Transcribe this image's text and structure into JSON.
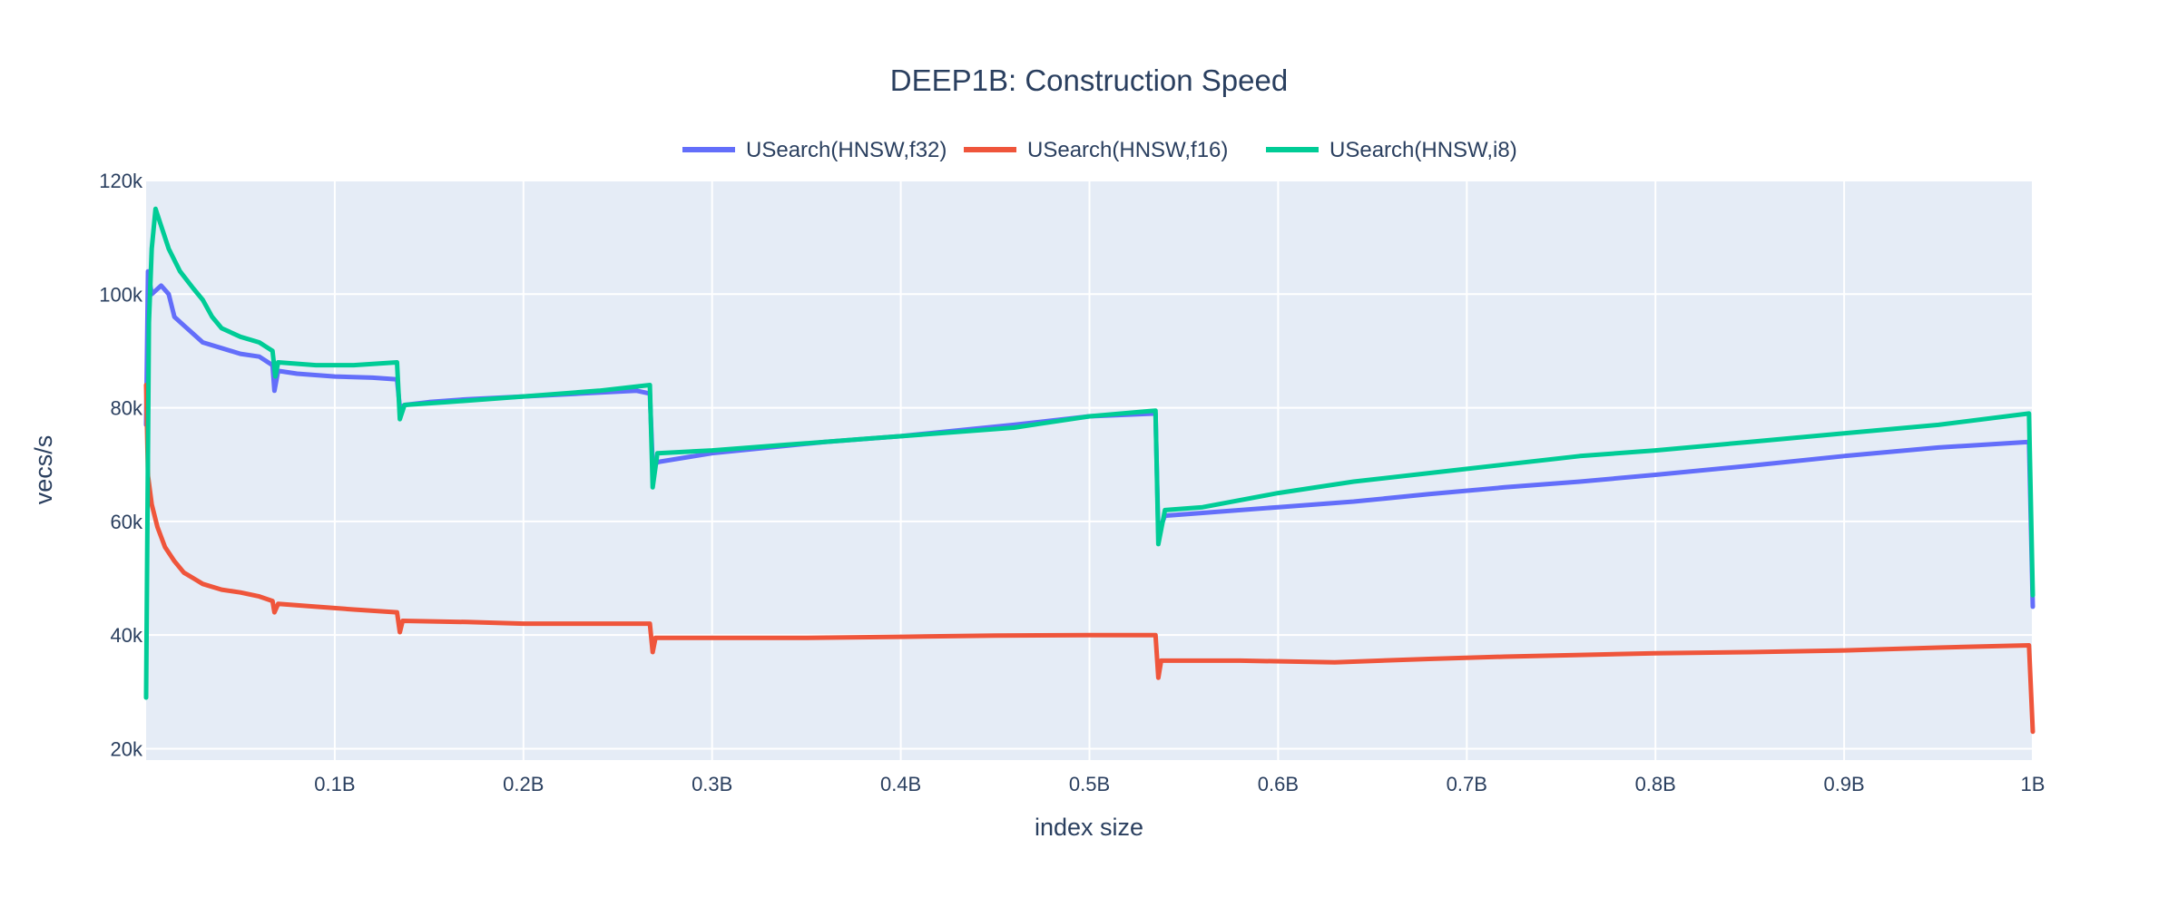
{
  "chart_data": {
    "type": "line",
    "title": "DEEP1B: Construction Speed",
    "xlabel": "index size",
    "ylabel": "vecs/s",
    "xlim": [
      0,
      1000000000
    ],
    "ylim": [
      18000,
      120000
    ],
    "x_ticks": [
      {
        "value": 100000000,
        "label": "0.1B"
      },
      {
        "value": 200000000,
        "label": "0.2B"
      },
      {
        "value": 300000000,
        "label": "0.3B"
      },
      {
        "value": 400000000,
        "label": "0.4B"
      },
      {
        "value": 500000000,
        "label": "0.5B"
      },
      {
        "value": 600000000,
        "label": "0.6B"
      },
      {
        "value": 700000000,
        "label": "0.7B"
      },
      {
        "value": 800000000,
        "label": "0.8B"
      },
      {
        "value": 900000000,
        "label": "0.9B"
      },
      {
        "value": 1000000000,
        "label": "1B"
      }
    ],
    "y_ticks": [
      {
        "value": 20000,
        "label": "20k"
      },
      {
        "value": 40000,
        "label": "40k"
      },
      {
        "value": 60000,
        "label": "60k"
      },
      {
        "value": 80000,
        "label": "80k"
      },
      {
        "value": 100000,
        "label": "100k"
      },
      {
        "value": 120000,
        "label": "120k"
      }
    ],
    "grid": true,
    "legend_position": "top-center",
    "colors": {
      "plot_background": "#e5ecf6",
      "grid": "#ffffff"
    },
    "series": [
      {
        "name": "USearch(HNSW,f32)",
        "color": "#636efa",
        "points": [
          [
            0,
            77000
          ],
          [
            1000000,
            104000
          ],
          [
            3000000,
            100000
          ],
          [
            8000000,
            101500
          ],
          [
            12000000,
            100000
          ],
          [
            15000000,
            96000
          ],
          [
            20000000,
            94500
          ],
          [
            25000000,
            93000
          ],
          [
            30000000,
            91500
          ],
          [
            40000000,
            90500
          ],
          [
            50000000,
            89500
          ],
          [
            60000000,
            89000
          ],
          [
            67000000,
            87500
          ],
          [
            68000000,
            83000
          ],
          [
            70000000,
            86500
          ],
          [
            80000000,
            86000
          ],
          [
            100000000,
            85500
          ],
          [
            120000000,
            85300
          ],
          [
            133000000,
            85000
          ],
          [
            134500000,
            80000
          ],
          [
            137000000,
            80500
          ],
          [
            150000000,
            81000
          ],
          [
            170000000,
            81500
          ],
          [
            200000000,
            82000
          ],
          [
            230000000,
            82500
          ],
          [
            260000000,
            83000
          ],
          [
            267000000,
            82500
          ],
          [
            268500000,
            70000
          ],
          [
            272000000,
            70500
          ],
          [
            300000000,
            72000
          ],
          [
            330000000,
            73000
          ],
          [
            360000000,
            74000
          ],
          [
            400000000,
            75000
          ],
          [
            430000000,
            76000
          ],
          [
            460000000,
            77000
          ],
          [
            500000000,
            78500
          ],
          [
            535000000,
            79000
          ],
          [
            536500000,
            58000
          ],
          [
            540000000,
            61000
          ],
          [
            560000000,
            61500
          ],
          [
            600000000,
            62500
          ],
          [
            640000000,
            63500
          ],
          [
            680000000,
            64800
          ],
          [
            720000000,
            66000
          ],
          [
            760000000,
            67000
          ],
          [
            800000000,
            68200
          ],
          [
            850000000,
            69800
          ],
          [
            900000000,
            71500
          ],
          [
            950000000,
            73000
          ],
          [
            998000000,
            74000
          ],
          [
            1000000000,
            45000
          ]
        ]
      },
      {
        "name": "USearch(HNSW,f16)",
        "color": "#ef553b",
        "points": [
          [
            0,
            84000
          ],
          [
            1000000,
            68000
          ],
          [
            3000000,
            63000
          ],
          [
            6000000,
            59000
          ],
          [
            10000000,
            55500
          ],
          [
            15000000,
            53000
          ],
          [
            20000000,
            51000
          ],
          [
            25000000,
            50000
          ],
          [
            30000000,
            49000
          ],
          [
            40000000,
            48000
          ],
          [
            50000000,
            47500
          ],
          [
            60000000,
            46800
          ],
          [
            67000000,
            46000
          ],
          [
            68000000,
            44000
          ],
          [
            70000000,
            45500
          ],
          [
            90000000,
            45000
          ],
          [
            110000000,
            44500
          ],
          [
            133000000,
            44000
          ],
          [
            134500000,
            40500
          ],
          [
            136000000,
            42500
          ],
          [
            170000000,
            42300
          ],
          [
            200000000,
            42000
          ],
          [
            240000000,
            42000
          ],
          [
            267000000,
            42000
          ],
          [
            268500000,
            37000
          ],
          [
            270000000,
            39500
          ],
          [
            300000000,
            39500
          ],
          [
            350000000,
            39500
          ],
          [
            400000000,
            39700
          ],
          [
            450000000,
            39900
          ],
          [
            500000000,
            40000
          ],
          [
            535000000,
            40000
          ],
          [
            536500000,
            32500
          ],
          [
            538000000,
            35500
          ],
          [
            580000000,
            35500
          ],
          [
            630000000,
            35200
          ],
          [
            680000000,
            35800
          ],
          [
            720000000,
            36200
          ],
          [
            760000000,
            36500
          ],
          [
            800000000,
            36800
          ],
          [
            850000000,
            37000
          ],
          [
            900000000,
            37300
          ],
          [
            950000000,
            37800
          ],
          [
            998000000,
            38200
          ],
          [
            1000000000,
            23000
          ]
        ]
      },
      {
        "name": "USearch(HNSW,i8)",
        "color": "#00cc96",
        "points": [
          [
            0,
            29000
          ],
          [
            1500000,
            95000
          ],
          [
            3000000,
            108000
          ],
          [
            5000000,
            115000
          ],
          [
            8000000,
            112000
          ],
          [
            12000000,
            108000
          ],
          [
            18000000,
            104000
          ],
          [
            25000000,
            101000
          ],
          [
            30000000,
            99000
          ],
          [
            35000000,
            96000
          ],
          [
            40000000,
            94000
          ],
          [
            50000000,
            92500
          ],
          [
            60000000,
            91500
          ],
          [
            67000000,
            90000
          ],
          [
            68500000,
            85500
          ],
          [
            70000000,
            88000
          ],
          [
            90000000,
            87500
          ],
          [
            110000000,
            87500
          ],
          [
            133000000,
            88000
          ],
          [
            134500000,
            78000
          ],
          [
            137000000,
            80500
          ],
          [
            160000000,
            81000
          ],
          [
            200000000,
            82000
          ],
          [
            240000000,
            83000
          ],
          [
            267000000,
            84000
          ],
          [
            268500000,
            66000
          ],
          [
            271000000,
            72000
          ],
          [
            300000000,
            72500
          ],
          [
            340000000,
            73500
          ],
          [
            380000000,
            74500
          ],
          [
            420000000,
            75500
          ],
          [
            460000000,
            76500
          ],
          [
            500000000,
            78500
          ],
          [
            535000000,
            79500
          ],
          [
            536500000,
            56000
          ],
          [
            540000000,
            62000
          ],
          [
            560000000,
            62500
          ],
          [
            600000000,
            65000
          ],
          [
            640000000,
            67000
          ],
          [
            680000000,
            68500
          ],
          [
            720000000,
            70000
          ],
          [
            760000000,
            71500
          ],
          [
            800000000,
            72500
          ],
          [
            850000000,
            74000
          ],
          [
            900000000,
            75500
          ],
          [
            950000000,
            77000
          ],
          [
            998000000,
            79000
          ],
          [
            1000000000,
            47000
          ]
        ]
      }
    ]
  }
}
